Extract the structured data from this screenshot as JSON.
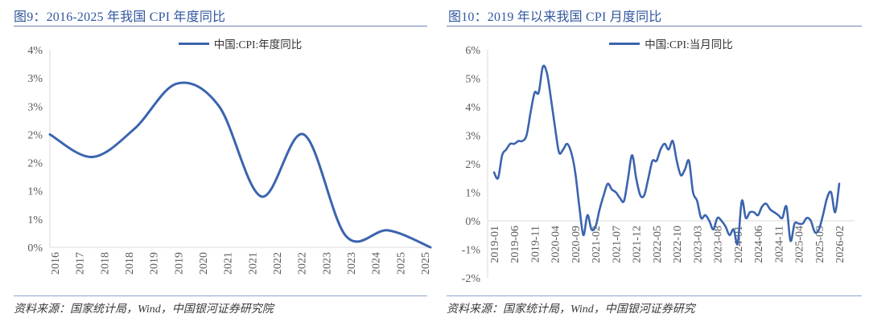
{
  "colors": {
    "line_blue": "#3B64AE",
    "title_blue": "#31579E",
    "tick_gray": "#595959",
    "axis_line_gray": "#D9D9D9",
    "title_rule": "#6C84B4",
    "source_rule": "#8FA5CF",
    "source_text": "#3A3A3A"
  },
  "figures": [
    {
      "title": "图9：2016-2025 年我国 CPI 年度同比",
      "legend": "中国:CPI:年度同比",
      "source": "资料来源：国家统计局，Wind，中国银河证券研究院",
      "chart_data": {
        "type": "line",
        "smooth": true,
        "title": "2016-2025 年我国 CPI 年度同比",
        "series_name": "中国:CPI:年度同比",
        "categories": [
          "2016",
          "2017",
          "2018",
          "2019",
          "2020",
          "2021",
          "2022",
          "2023",
          "2024",
          "2025"
        ],
        "values": [
          2.0,
          1.6,
          2.1,
          2.9,
          2.5,
          0.9,
          2.0,
          0.2,
          0.3,
          0.0
        ],
        "unit": "%",
        "ylim": [
          0,
          3.5
        ],
        "grid": false,
        "legend_position": "top",
        "y_ticks": [
          {
            "v": 3.5,
            "label": "4%"
          },
          {
            "v": 3.0,
            "label": "3%"
          },
          {
            "v": 2.5,
            "label": "3%"
          },
          {
            "v": 2.0,
            "label": "2%"
          },
          {
            "v": 1.5,
            "label": "2%"
          },
          {
            "v": 1.0,
            "label": "1%"
          },
          {
            "v": 0.5,
            "label": "1%"
          },
          {
            "v": 0.0,
            "label": "0%"
          }
        ],
        "x_tick_labels": [
          "2016",
          "2017",
          "2018",
          "2018",
          "2019",
          "2019",
          "2020",
          "2021",
          "2021",
          "2022",
          "2022",
          "2023",
          "2023",
          "2024",
          "2025",
          "2025"
        ]
      }
    },
    {
      "title": "图10：2019 年以来我国 CPI 月度同比",
      "legend": "中国:CPI:当月同比",
      "source": "资料来源：国家统计局，Wind，中国银河证券研究",
      "chart_data": {
        "type": "line",
        "smooth": true,
        "title": "2019 年以来我国 CPI 月度同比",
        "series_name": "中国:CPI:当月同比",
        "x_start": "2019-01",
        "x_freq": "monthly",
        "values": [
          1.7,
          1.5,
          2.3,
          2.5,
          2.7,
          2.7,
          2.8,
          2.8,
          3.0,
          3.8,
          4.5,
          4.5,
          5.4,
          5.2,
          4.3,
          3.3,
          2.4,
          2.5,
          2.7,
          2.4,
          1.7,
          0.5,
          -0.5,
          0.2,
          -0.3,
          -0.2,
          0.4,
          0.9,
          1.3,
          1.1,
          1.0,
          0.8,
          0.7,
          1.5,
          2.3,
          1.5,
          0.9,
          0.9,
          1.5,
          2.1,
          2.1,
          2.5,
          2.7,
          2.5,
          2.8,
          2.1,
          1.6,
          1.8,
          2.1,
          1.0,
          0.7,
          0.1,
          0.2,
          0.0,
          -0.3,
          0.1,
          0.0,
          -0.2,
          -0.5,
          -0.3,
          -0.8,
          0.7,
          0.1,
          0.3,
          0.3,
          0.2,
          0.5,
          0.6,
          0.4,
          0.3,
          0.2,
          0.1,
          0.5,
          -0.7,
          -0.1,
          -0.1,
          -0.1,
          0.1,
          0.0,
          -0.4,
          -0.3,
          0.2,
          0.8,
          1.0,
          0.3,
          1.3
        ],
        "unit": "%",
        "ylim": [
          -2,
          6
        ],
        "grid": false,
        "legend_position": "top",
        "y_ticks": [
          {
            "v": 6,
            "label": "6%"
          },
          {
            "v": 5,
            "label": "5%"
          },
          {
            "v": 4,
            "label": "4%"
          },
          {
            "v": 3,
            "label": "3%"
          },
          {
            "v": 2,
            "label": "2%"
          },
          {
            "v": 1,
            "label": "1%"
          },
          {
            "v": 0,
            "label": "0%"
          },
          {
            "v": -1,
            "label": "-1%"
          },
          {
            "v": -2,
            "label": "-2%"
          }
        ],
        "x_tick_every": 5,
        "x_tick_labels": [
          "2019-01",
          "2019-06",
          "2019-11",
          "2020-04",
          "2020-09",
          "2021-02",
          "2021-07",
          "2021-12",
          "2022-05",
          "2022-10",
          "2023-03",
          "2023-08",
          "2024-01",
          "2024-06",
          "2024-11",
          "2025-04",
          "2025-09",
          "2026-02"
        ]
      }
    }
  ]
}
